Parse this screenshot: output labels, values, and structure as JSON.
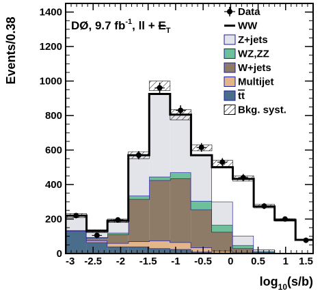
{
  "chart_data": {
    "type": "bar",
    "subtype": "stacked-step-histogram",
    "title_parts": {
      "prefix": "DØ, 9.7 fb",
      "superscript": "-1",
      "channel": ", ll + ",
      "met_symbol": "E",
      "met_subscript": "T"
    },
    "xlabel": {
      "base": "log",
      "subscript": "10",
      "rest": "(s/b)"
    },
    "ylabel": "Events/0.38",
    "xlim": [
      -3,
      1.5
    ],
    "ylim": [
      0,
      1450
    ],
    "xticks": [
      "-3",
      "-2.5",
      "-2",
      "-1.5",
      "-1",
      "-0.5",
      "0",
      "0.5",
      "1",
      "1.5"
    ],
    "yticks": [
      "0",
      "200",
      "400",
      "600",
      "800",
      "1000",
      "1200",
      "1400"
    ],
    "bin_edges": [
      -3.0,
      -2.62,
      -2.24,
      -1.86,
      -1.48,
      -1.1,
      -0.72,
      -0.34,
      0.04,
      0.42,
      0.8,
      1.18,
      1.56
    ],
    "legend": {
      "position": "top-right",
      "entries": [
        {
          "label": "Data",
          "marker": "point"
        },
        {
          "label": "WW",
          "marker": "line"
        },
        {
          "label": "Z+jets",
          "marker": "box"
        },
        {
          "label": "WZ,ZZ",
          "marker": "box"
        },
        {
          "label": "W+jets",
          "marker": "box"
        },
        {
          "label": "Multijet",
          "marker": "box"
        },
        {
          "label": "tt",
          "marker": "box",
          "overline": true
        },
        {
          "label": "Bkg. syst.",
          "marker": "hatch"
        }
      ]
    },
    "series": [
      {
        "name": "tt",
        "color": "#4a6d8c",
        "values": [
          130,
          65,
          40,
          40,
          30,
          25,
          10,
          5,
          2,
          1,
          0,
          0
        ]
      },
      {
        "name": "Multijet",
        "color": "#e2b688",
        "values": [
          5,
          10,
          20,
          30,
          45,
          40,
          25,
          10,
          3,
          1,
          0,
          0
        ]
      },
      {
        "name": "W+jets",
        "color": "#8e7b67",
        "values": [
          0,
          15,
          50,
          245,
          350,
          370,
          220,
          110,
          25,
          5,
          0,
          0
        ]
      },
      {
        "name": "WZ,ZZ",
        "color": "#6fbf9b",
        "values": [
          0,
          5,
          10,
          20,
          20,
          35,
          50,
          40,
          18,
          6,
          2,
          1
        ]
      },
      {
        "name": "Z+jets",
        "color": "#e3e3ea",
        "values": [
          85,
          35,
          70,
          235,
          480,
          335,
          265,
          135,
          55,
          10,
          2,
          0
        ]
      },
      {
        "name": "WW",
        "color": "#000000",
        "values": [
          0,
          0,
          0,
          0,
          0,
          0,
          0,
          200,
          330,
          250,
          190,
          78
        ]
      }
    ],
    "totals": [
      220,
      130,
      190,
      570,
      925,
      805,
      570,
      500,
      433,
      273,
      194,
      79
    ],
    "syst_band": [
      [
        208,
        232
      ],
      [
        122,
        138
      ],
      [
        180,
        200
      ],
      [
        550,
        590
      ],
      [
        945,
        1000
      ],
      [
        775,
        835
      ],
      [
        595,
        630
      ],
      [
        505,
        540
      ],
      [
        420,
        450
      ],
      [
        265,
        285
      ],
      [
        188,
        202
      ],
      [
        75,
        83
      ]
    ],
    "data": {
      "x": [
        -2.81,
        -2.43,
        -2.05,
        -1.67,
        -1.29,
        -0.91,
        -0.53,
        -0.15,
        0.23,
        0.61,
        0.99,
        1.37
      ],
      "y": [
        220,
        105,
        195,
        570,
        960,
        830,
        615,
        530,
        440,
        275,
        200,
        77
      ],
      "yerr": [
        15,
        10,
        14,
        24,
        31,
        29,
        25,
        23,
        21,
        17,
        14,
        9
      ]
    }
  }
}
